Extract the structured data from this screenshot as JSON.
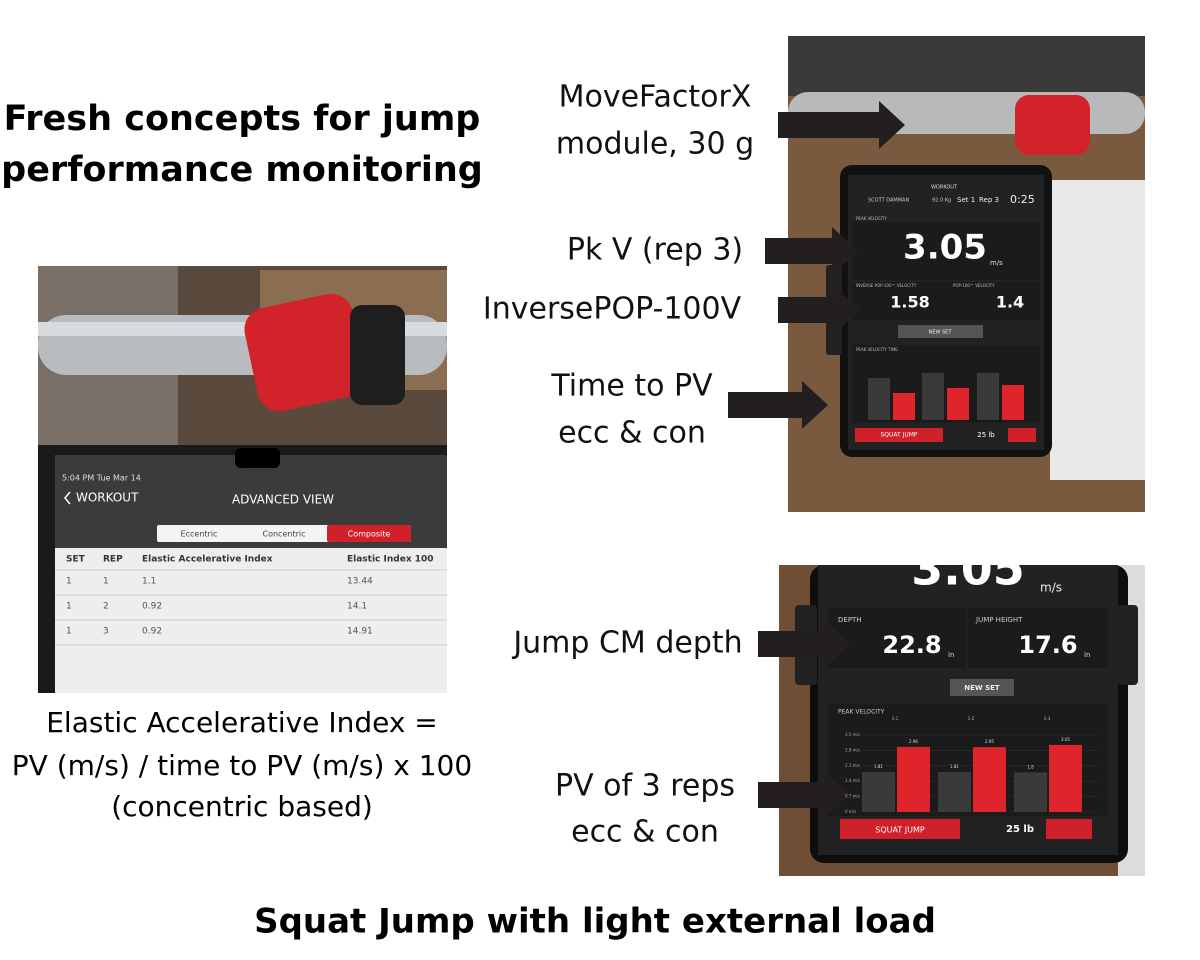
{
  "title_lines": [
    "Fresh concepts for jump",
    "performance monitoring"
  ],
  "footer": "Squat Jump with light external load",
  "formula_lines": [
    "Elastic Accelerative Index =",
    "PV (m/s) / time to PV (m/s) x 100",
    "(concentric based)"
  ],
  "callouts": [
    {
      "lines": [
        "MoveFactorX",
        "module, 30 g"
      ]
    },
    {
      "lines": [
        "Pk V (rep 3)"
      ]
    },
    {
      "lines": [
        "InversePOP-100V"
      ]
    },
    {
      "lines": [
        "Time to PV",
        "ecc & con"
      ]
    },
    {
      "lines": [
        "Jump CM depth"
      ]
    },
    {
      "lines": [
        "PV of 3 reps",
        "ecc & con"
      ]
    }
  ],
  "advanced_view": {
    "status": "5:04 PM   Tue Mar 14",
    "back": "WORKOUT",
    "title": "ADVANCED VIEW",
    "tabs": [
      "Eccentric",
      "Concentric",
      "Composite"
    ],
    "columns": [
      "SET",
      "REP",
      "Elastic Accelerative Index",
      "Elastic Index 100"
    ],
    "rows": [
      [
        "1",
        "1",
        "1.1",
        "13.44"
      ],
      [
        "1",
        "2",
        "0.92",
        "14.1"
      ],
      [
        "1",
        "3",
        "0.92",
        "14.91"
      ]
    ]
  },
  "tablet_top": {
    "header": "WORKOUT",
    "athlete": "SCOTT DAMMAN",
    "load": "92.0 Kg",
    "set": "Set 1",
    "rep": "Rep 3",
    "clock": "0:25",
    "peak_label": "PEAK VELOCITY",
    "peak": "3.05",
    "unit": "m/s",
    "inverse_label": "INVERSE POP-100™ VELOCITY",
    "inverse": "1.58",
    "pop_label": "POP-100™ VELOCITY",
    "pop": "1.4",
    "new_set": "NEW SET",
    "chart_label": "PEAK VELOCITY TIME",
    "exercise": "SQUAT JUMP",
    "weight": "25 lb"
  },
  "tablet_bottom": {
    "peak": "3.05",
    "unit": "m/s",
    "depth_label": "DEPTH",
    "depth": "22.8",
    "depth_unit": "in",
    "height_label": "JUMP HEIGHT",
    "height": "17.6",
    "height_unit": "in",
    "new_set": "NEW SET",
    "chart_data": {
      "type": "bar",
      "title": "PEAK VELOCITY",
      "categories": [
        "1-1",
        "1-2",
        "1-3"
      ],
      "series": [
        {
          "color": "#3a3a3a",
          "values": [
            1.81,
            1.81,
            1.8
          ]
        },
        {
          "color": "#e0242b",
          "values": [
            2.96,
            2.95,
            3.05
          ]
        }
      ],
      "ylim": [
        0,
        3.5
      ],
      "yticks": [
        {
          "value": 0,
          "label": "0 m/s"
        },
        {
          "value": 0.7,
          "label": "0.7 m/s"
        },
        {
          "value": 1.4,
          "label": "1.4 m/s"
        },
        {
          "value": 2.1,
          "label": "2.1 m/s"
        },
        {
          "value": 2.8,
          "label": "2.8 m/s"
        },
        {
          "value": 3.5,
          "label": "3.5 m/s"
        }
      ]
    },
    "exercise": "SQUAT JUMP",
    "weight": "25 lb"
  }
}
